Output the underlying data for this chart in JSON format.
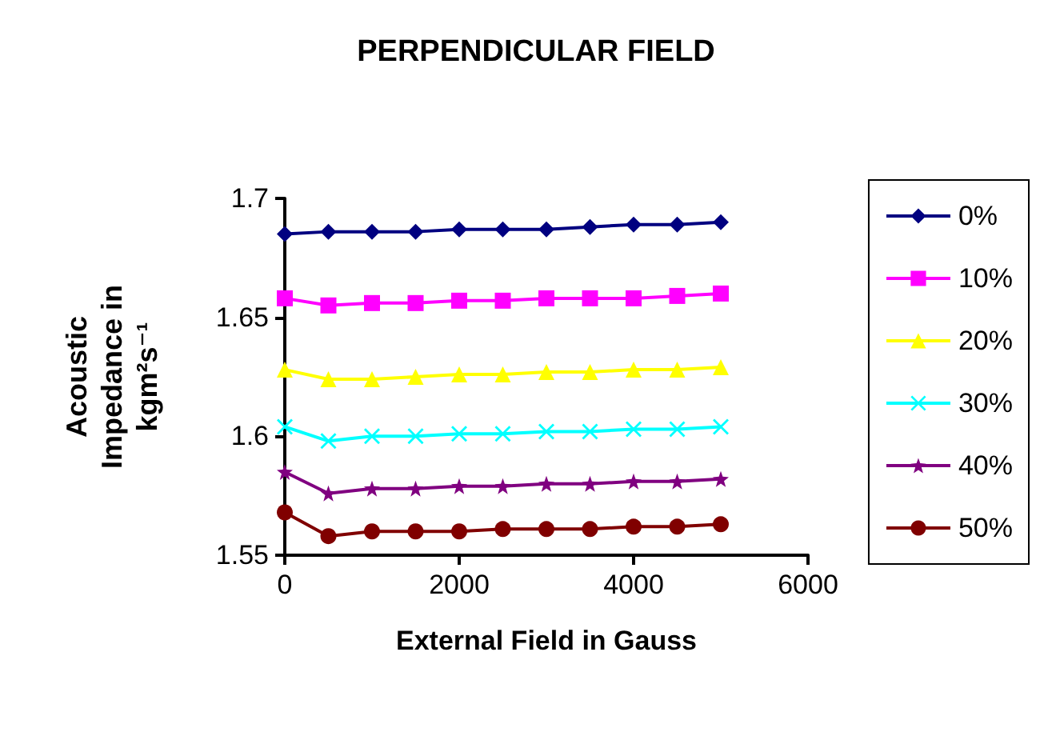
{
  "chart_data": {
    "type": "line",
    "title": "PERPENDICULAR FIELD",
    "xlabel": "External Field in Gauss",
    "ylabel": "Acoustic Impedance in kgm²s⁻¹",
    "x": [
      0,
      500,
      1000,
      1500,
      2000,
      2500,
      3000,
      3500,
      4000,
      4500,
      5000
    ],
    "xlim": [
      0,
      6000
    ],
    "xticks": [
      0,
      2000,
      4000,
      6000
    ],
    "ylim": [
      1.55,
      1.7
    ],
    "yticks": [
      1.55,
      1.6,
      1.65,
      1.7
    ],
    "grid": false,
    "legend": "right",
    "series": [
      {
        "name": "0%",
        "color": "#000080",
        "marker": "diamond",
        "values": [
          1.685,
          1.686,
          1.686,
          1.686,
          1.687,
          1.687,
          1.687,
          1.688,
          1.689,
          1.689,
          1.69
        ]
      },
      {
        "name": "10%",
        "color": "#ff00ff",
        "marker": "square",
        "values": [
          1.658,
          1.655,
          1.656,
          1.656,
          1.657,
          1.657,
          1.658,
          1.658,
          1.658,
          1.659,
          1.66
        ]
      },
      {
        "name": "20%",
        "color": "#ffff00",
        "marker": "triangle",
        "values": [
          1.628,
          1.624,
          1.624,
          1.625,
          1.626,
          1.626,
          1.627,
          1.627,
          1.628,
          1.628,
          1.629
        ]
      },
      {
        "name": "30%",
        "color": "#00ffff",
        "marker": "cross",
        "values": [
          1.604,
          1.598,
          1.6,
          1.6,
          1.601,
          1.601,
          1.602,
          1.602,
          1.603,
          1.603,
          1.604
        ]
      },
      {
        "name": "40%",
        "color": "#800080",
        "marker": "star",
        "values": [
          1.585,
          1.576,
          1.578,
          1.578,
          1.579,
          1.579,
          1.58,
          1.58,
          1.581,
          1.581,
          1.582
        ]
      },
      {
        "name": "50%",
        "color": "#800000",
        "marker": "circle",
        "values": [
          1.568,
          1.558,
          1.56,
          1.56,
          1.56,
          1.561,
          1.561,
          1.561,
          1.562,
          1.562,
          1.563
        ]
      }
    ]
  }
}
